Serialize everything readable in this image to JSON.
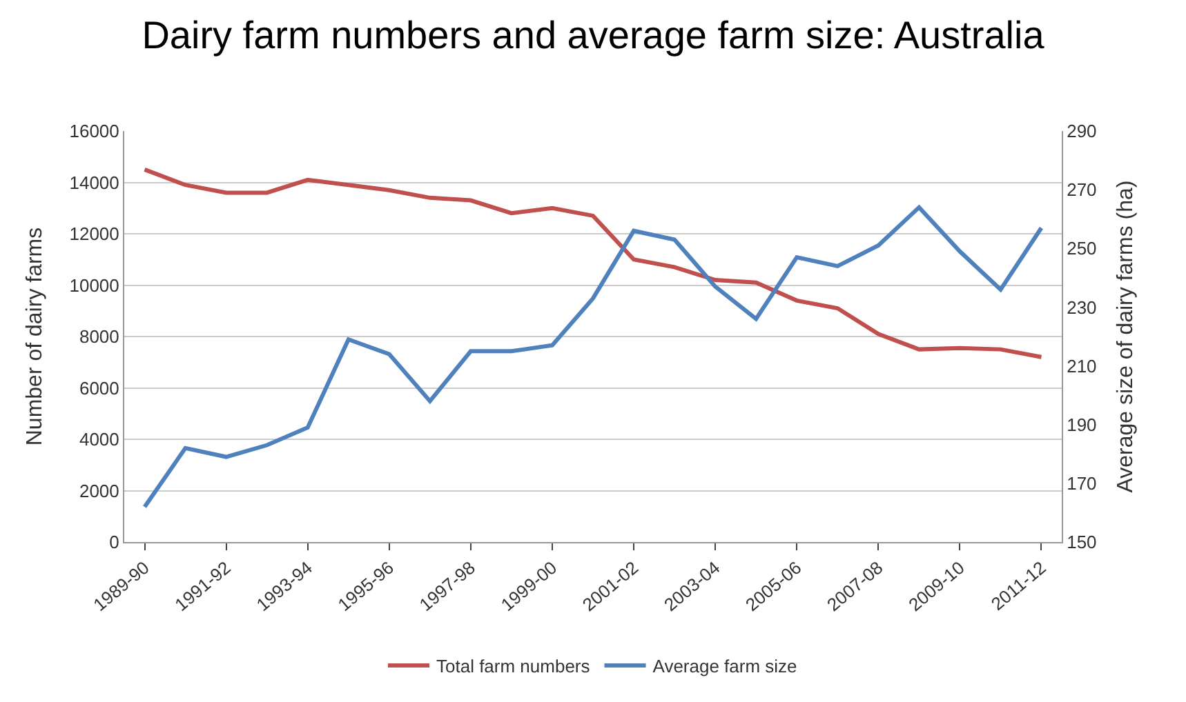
{
  "chart_data": {
    "type": "line",
    "title": "Dairy farm numbers and average farm size: Australia",
    "ylabel": "Number of dairy farms",
    "y2label": "Average size of dairy farms (ha)",
    "categories": [
      "1989-90",
      null,
      "1991-92",
      null,
      "1993-94",
      null,
      "1995-96",
      null,
      "1997-98",
      null,
      "1999-00",
      null,
      "2001-02",
      null,
      "2003-04",
      null,
      "2005-06",
      null,
      "2007-08",
      null,
      "2009-10",
      null,
      "2011-12"
    ],
    "series": [
      {
        "name": "Total farm numbers",
        "color": "#c0504d",
        "values": [
          14500,
          13900,
          13600,
          13600,
          14100,
          13900,
          13700,
          13400,
          13300,
          12800,
          13000,
          12700,
          11000,
          10700,
          10200,
          10100,
          9400,
          9100,
          8100,
          7500,
          7550,
          7500,
          7200
        ]
      },
      {
        "name": "Average farm size",
        "color": "#4f81bd",
        "axis": "y2",
        "values": [
          162,
          182,
          179,
          183,
          189,
          219,
          214,
          198,
          215,
          215,
          217,
          233,
          256,
          253,
          237,
          226,
          247,
          244,
          251,
          264,
          249,
          236,
          257
        ]
      }
    ],
    "ylim": [
      0,
      16000
    ],
    "yticks": [
      0,
      2000,
      4000,
      6000,
      8000,
      10000,
      12000,
      14000,
      16000
    ],
    "y2lim": [
      150,
      290
    ],
    "y2ticks": [
      150,
      170,
      190,
      210,
      230,
      250,
      270,
      290
    ],
    "grid": "y",
    "legend": "bottom",
    "marker": "none",
    "line_style": "solid"
  }
}
